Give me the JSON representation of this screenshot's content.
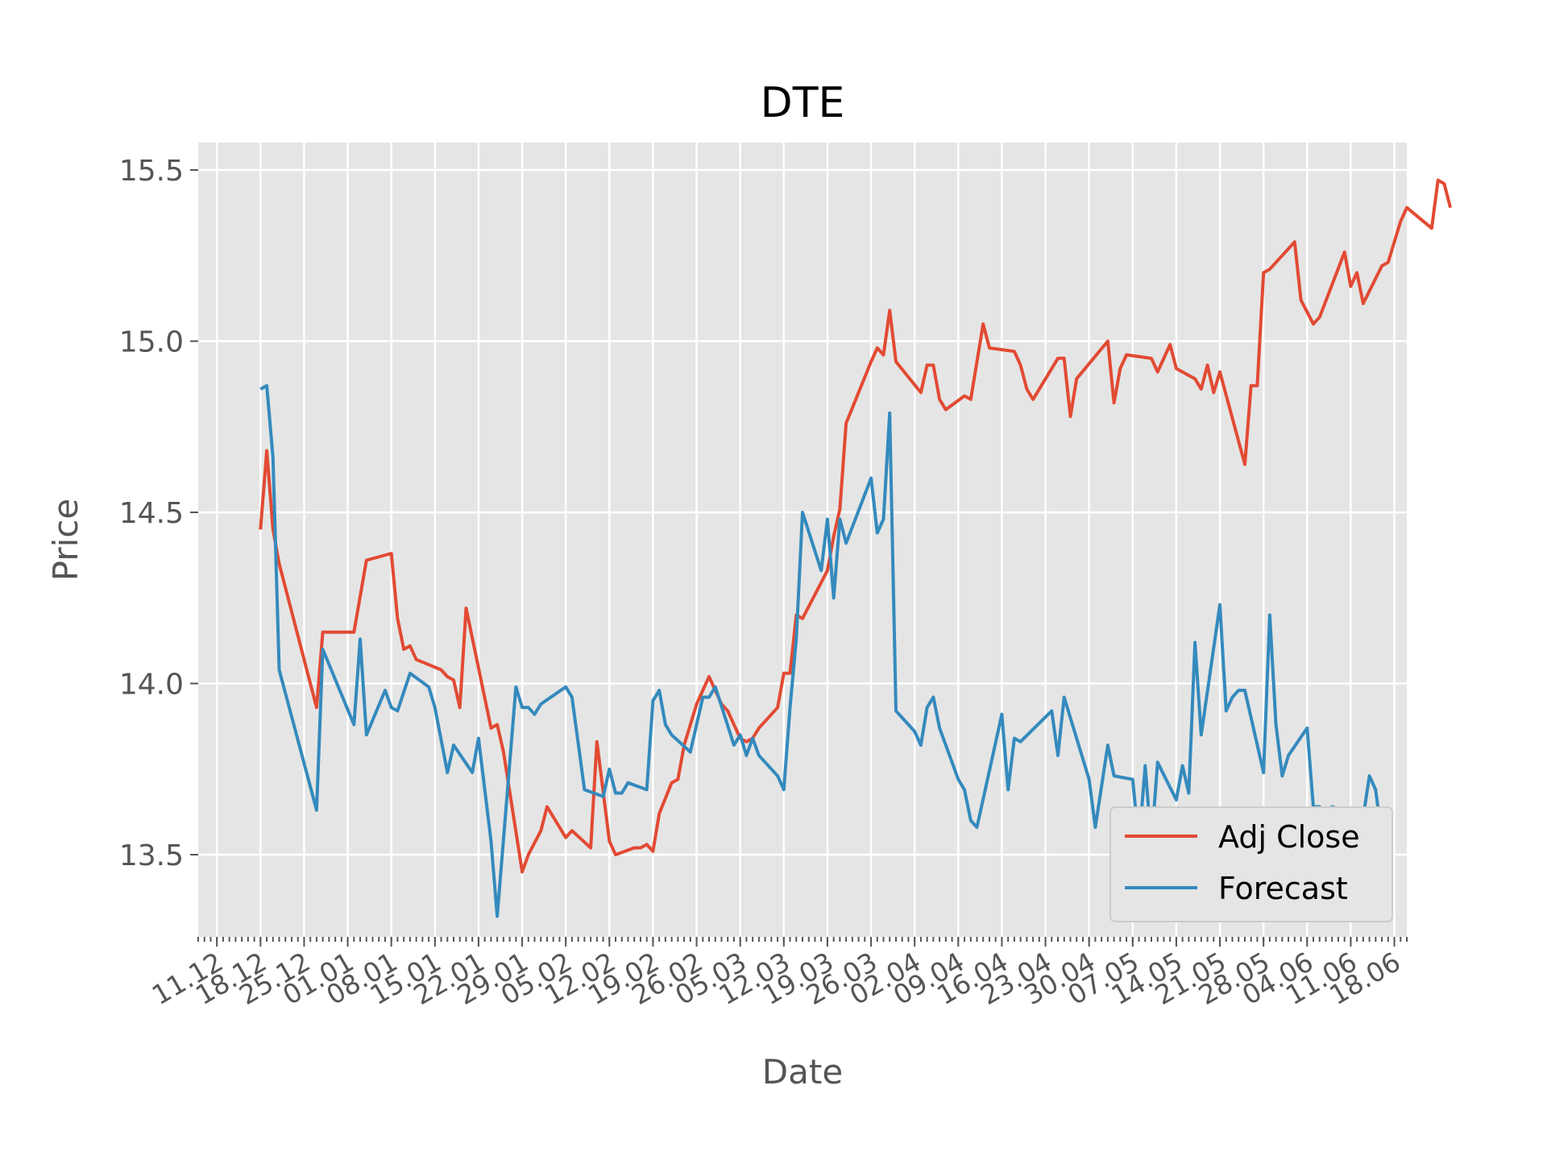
{
  "chart_data": {
    "type": "line",
    "title": "DTE",
    "xlabel": "Date",
    "ylabel": "Price",
    "ylim": [
      13.26,
      15.58
    ],
    "yticks": [
      13.5,
      14.0,
      14.5,
      15.0,
      15.5
    ],
    "ytick_labels": [
      "13.5",
      "14.0",
      "14.5",
      "15.0",
      "15.5"
    ],
    "xlim": [
      "2017-12-08",
      "2018-06-20"
    ],
    "xtick_labels": [
      {
        "date": "2017-12-11",
        "label": "11.12"
      },
      {
        "date": "2017-12-18",
        "label": "18.12"
      },
      {
        "date": "2017-12-25",
        "label": "25.12"
      },
      {
        "date": "2018-01-01",
        "label": "01.01"
      },
      {
        "date": "2018-01-08",
        "label": "08.01"
      },
      {
        "date": "2018-01-15",
        "label": "15.01"
      },
      {
        "date": "2018-01-22",
        "label": "22.01"
      },
      {
        "date": "2018-01-29",
        "label": "29.01"
      },
      {
        "date": "2018-02-05",
        "label": "05.02"
      },
      {
        "date": "2018-02-12",
        "label": "12.02"
      },
      {
        "date": "2018-02-19",
        "label": "19.02"
      },
      {
        "date": "2018-02-26",
        "label": "26.02"
      },
      {
        "date": "2018-03-05",
        "label": "05.03"
      },
      {
        "date": "2018-03-12",
        "label": "12.03"
      },
      {
        "date": "2018-03-19",
        "label": "19.03"
      },
      {
        "date": "2018-03-26",
        "label": "26.03"
      },
      {
        "date": "2018-04-02",
        "label": "02.04"
      },
      {
        "date": "2018-04-09",
        "label": "09.04"
      },
      {
        "date": "2018-04-16",
        "label": "16.04"
      },
      {
        "date": "2018-04-23",
        "label": "23.04"
      },
      {
        "date": "2018-04-30",
        "label": "30.04"
      },
      {
        "date": "2018-05-07",
        "label": "07.05"
      },
      {
        "date": "2018-05-14",
        "label": "14.05"
      },
      {
        "date": "2018-05-21",
        "label": "21.05"
      },
      {
        "date": "2018-05-28",
        "label": "28.05"
      },
      {
        "date": "2018-06-04",
        "label": "04.06"
      },
      {
        "date": "2018-06-11",
        "label": "11.06"
      },
      {
        "date": "2018-06-18",
        "label": "18.06"
      }
    ],
    "grid": true,
    "legend_position": "lower-right",
    "series": [
      {
        "name": "Adj Close",
        "color": "#E24A33",
        "points": [
          [
            "2017-12-18",
            14.45
          ],
          [
            "2017-12-19",
            14.68
          ],
          [
            "2017-12-20",
            14.45
          ],
          [
            "2017-12-21",
            14.35
          ],
          [
            "2017-12-27",
            13.93
          ],
          [
            "2017-12-28",
            14.15
          ],
          [
            "2018-01-02",
            14.15
          ],
          [
            "2018-01-04",
            14.36
          ],
          [
            "2018-01-08",
            14.38
          ],
          [
            "2018-01-09",
            14.19
          ],
          [
            "2018-01-10",
            14.1
          ],
          [
            "2018-01-11",
            14.11
          ],
          [
            "2018-01-12",
            14.07
          ],
          [
            "2018-01-16",
            14.04
          ],
          [
            "2018-01-17",
            14.02
          ],
          [
            "2018-01-18",
            14.01
          ],
          [
            "2018-01-19",
            13.93
          ],
          [
            "2018-01-20",
            14.22
          ],
          [
            "2018-01-24",
            13.87
          ],
          [
            "2018-01-25",
            13.88
          ],
          [
            "2018-01-26",
            13.8
          ],
          [
            "2018-01-29",
            13.45
          ],
          [
            "2018-01-30",
            13.5
          ],
          [
            "2018-02-01",
            13.57
          ],
          [
            "2018-02-02",
            13.64
          ],
          [
            "2018-02-05",
            13.55
          ],
          [
            "2018-02-06",
            13.57
          ],
          [
            "2018-02-09",
            13.52
          ],
          [
            "2018-02-10",
            13.83
          ],
          [
            "2018-02-12",
            13.54
          ],
          [
            "2018-02-13",
            13.5
          ],
          [
            "2018-02-16",
            13.52
          ],
          [
            "2018-02-17",
            13.52
          ],
          [
            "2018-02-18",
            13.53
          ],
          [
            "2018-02-19",
            13.51
          ],
          [
            "2018-02-20",
            13.62
          ],
          [
            "2018-02-22",
            13.71
          ],
          [
            "2018-02-23",
            13.72
          ],
          [
            "2018-02-24",
            13.82
          ],
          [
            "2018-02-26",
            13.94
          ],
          [
            "2018-02-28",
            14.02
          ],
          [
            "2018-03-02",
            13.94
          ],
          [
            "2018-03-03",
            13.92
          ],
          [
            "2018-03-05",
            13.84
          ],
          [
            "2018-03-06",
            13.83
          ],
          [
            "2018-03-07",
            13.84
          ],
          [
            "2018-03-08",
            13.87
          ],
          [
            "2018-03-11",
            13.93
          ],
          [
            "2018-03-12",
            14.03
          ],
          [
            "2018-03-13",
            14.03
          ],
          [
            "2018-03-14",
            14.2
          ],
          [
            "2018-03-15",
            14.19
          ],
          [
            "2018-03-19",
            14.33
          ],
          [
            "2018-03-20",
            14.43
          ],
          [
            "2018-03-21",
            14.51
          ],
          [
            "2018-03-22",
            14.76
          ],
          [
            "2018-03-26",
            14.94
          ],
          [
            "2018-03-27",
            14.98
          ],
          [
            "2018-03-28",
            14.96
          ],
          [
            "2018-03-29",
            15.09
          ],
          [
            "2018-03-30",
            14.94
          ],
          [
            "2018-04-03",
            14.85
          ],
          [
            "2018-04-04",
            14.93
          ],
          [
            "2018-04-05",
            14.93
          ],
          [
            "2018-04-06",
            14.83
          ],
          [
            "2018-04-07",
            14.8
          ],
          [
            "2018-04-10",
            14.84
          ],
          [
            "2018-04-11",
            14.83
          ],
          [
            "2018-04-13",
            15.05
          ],
          [
            "2018-04-14",
            14.98
          ],
          [
            "2018-04-18",
            14.97
          ],
          [
            "2018-04-19",
            14.93
          ],
          [
            "2018-04-20",
            14.86
          ],
          [
            "2018-04-21",
            14.83
          ],
          [
            "2018-04-25",
            14.95
          ],
          [
            "2018-04-26",
            14.95
          ],
          [
            "2018-04-27",
            14.78
          ],
          [
            "2018-04-28",
            14.89
          ],
          [
            "2018-05-03",
            15.0
          ],
          [
            "2018-05-04",
            14.82
          ],
          [
            "2018-05-05",
            14.92
          ],
          [
            "2018-05-06",
            14.96
          ],
          [
            "2018-05-10",
            14.95
          ],
          [
            "2018-05-11",
            14.91
          ],
          [
            "2018-05-13",
            14.99
          ],
          [
            "2018-05-14",
            14.92
          ],
          [
            "2018-05-17",
            14.89
          ],
          [
            "2018-05-18",
            14.86
          ],
          [
            "2018-05-19",
            14.93
          ],
          [
            "2018-05-20",
            14.85
          ],
          [
            "2018-05-21",
            14.91
          ],
          [
            "2018-05-25",
            14.64
          ],
          [
            "2018-05-26",
            14.87
          ],
          [
            "2018-05-27",
            14.87
          ],
          [
            "2018-05-28",
            15.2
          ],
          [
            "2018-05-29",
            15.21
          ],
          [
            "2018-06-02",
            15.29
          ],
          [
            "2018-06-03",
            15.12
          ],
          [
            "2018-06-05",
            15.05
          ],
          [
            "2018-06-06",
            15.07
          ],
          [
            "2018-06-10",
            15.26
          ],
          [
            "2018-06-11",
            15.16
          ],
          [
            "2018-06-12",
            15.2
          ],
          [
            "2018-06-13",
            15.11
          ],
          [
            "2018-06-16",
            15.22
          ],
          [
            "2018-06-17",
            15.23
          ],
          [
            "2018-06-19",
            15.35
          ],
          [
            "2018-06-20",
            15.39
          ],
          [
            "2018-06-24",
            15.33
          ],
          [
            "2018-06-25",
            15.47
          ],
          [
            "2018-06-26",
            15.46
          ],
          [
            "2018-06-27",
            15.39
          ]
        ]
      },
      {
        "name": "Forecast",
        "color": "#348ABD",
        "points": [
          [
            "2017-12-18",
            14.86
          ],
          [
            "2017-12-19",
            14.87
          ],
          [
            "2017-12-20",
            14.66
          ],
          [
            "2017-12-21",
            14.04
          ],
          [
            "2017-12-27",
            13.63
          ],
          [
            "2017-12-28",
            14.1
          ],
          [
            "2018-01-02",
            13.88
          ],
          [
            "2018-01-03",
            14.13
          ],
          [
            "2018-01-04",
            13.85
          ],
          [
            "2018-01-07",
            13.98
          ],
          [
            "2018-01-08",
            13.93
          ],
          [
            "2018-01-09",
            13.92
          ],
          [
            "2018-01-11",
            14.03
          ],
          [
            "2018-01-14",
            13.99
          ],
          [
            "2018-01-15",
            13.93
          ],
          [
            "2018-01-17",
            13.74
          ],
          [
            "2018-01-18",
            13.82
          ],
          [
            "2018-01-21",
            13.74
          ],
          [
            "2018-01-22",
            13.84
          ],
          [
            "2018-01-24",
            13.54
          ],
          [
            "2018-01-25",
            13.32
          ],
          [
            "2018-01-28",
            13.99
          ],
          [
            "2018-01-29",
            13.93
          ],
          [
            "2018-01-30",
            13.93
          ],
          [
            "2018-01-31",
            13.91
          ],
          [
            "2018-02-01",
            13.94
          ],
          [
            "2018-02-05",
            13.99
          ],
          [
            "2018-02-06",
            13.96
          ],
          [
            "2018-02-08",
            13.69
          ],
          [
            "2018-02-11",
            13.67
          ],
          [
            "2018-02-12",
            13.75
          ],
          [
            "2018-02-13",
            13.68
          ],
          [
            "2018-02-14",
            13.68
          ],
          [
            "2018-02-15",
            13.71
          ],
          [
            "2018-02-18",
            13.69
          ],
          [
            "2018-02-19",
            13.95
          ],
          [
            "2018-02-20",
            13.98
          ],
          [
            "2018-02-21",
            13.88
          ],
          [
            "2018-02-22",
            13.85
          ],
          [
            "2018-02-25",
            13.8
          ],
          [
            "2018-02-27",
            13.96
          ],
          [
            "2018-02-28",
            13.96
          ],
          [
            "2018-03-01",
            13.99
          ],
          [
            "2018-03-04",
            13.82
          ],
          [
            "2018-03-05",
            13.85
          ],
          [
            "2018-03-06",
            13.79
          ],
          [
            "2018-03-07",
            13.84
          ],
          [
            "2018-03-08",
            13.79
          ],
          [
            "2018-03-11",
            13.73
          ],
          [
            "2018-03-12",
            13.69
          ],
          [
            "2018-03-13",
            13.93
          ],
          [
            "2018-03-14",
            14.13
          ],
          [
            "2018-03-15",
            14.5
          ],
          [
            "2018-03-18",
            14.33
          ],
          [
            "2018-03-19",
            14.48
          ],
          [
            "2018-03-20",
            14.25
          ],
          [
            "2018-03-21",
            14.48
          ],
          [
            "2018-03-22",
            14.41
          ],
          [
            "2018-03-26",
            14.6
          ],
          [
            "2018-03-27",
            14.44
          ],
          [
            "2018-03-28",
            14.48
          ],
          [
            "2018-03-29",
            14.79
          ],
          [
            "2018-03-30",
            13.92
          ],
          [
            "2018-04-02",
            13.86
          ],
          [
            "2018-04-03",
            13.82
          ],
          [
            "2018-04-04",
            13.93
          ],
          [
            "2018-04-05",
            13.96
          ],
          [
            "2018-04-06",
            13.87
          ],
          [
            "2018-04-09",
            13.72
          ],
          [
            "2018-04-10",
            13.69
          ],
          [
            "2018-04-11",
            13.6
          ],
          [
            "2018-04-12",
            13.58
          ],
          [
            "2018-04-16",
            13.91
          ],
          [
            "2018-04-17",
            13.69
          ],
          [
            "2018-04-18",
            13.84
          ],
          [
            "2018-04-19",
            13.83
          ],
          [
            "2018-04-24",
            13.92
          ],
          [
            "2018-04-25",
            13.79
          ],
          [
            "2018-04-26",
            13.96
          ],
          [
            "2018-04-30",
            13.72
          ],
          [
            "2018-05-01",
            13.58
          ],
          [
            "2018-05-03",
            13.82
          ],
          [
            "2018-05-04",
            13.73
          ],
          [
            "2018-05-07",
            13.72
          ],
          [
            "2018-05-08",
            13.53
          ],
          [
            "2018-05-09",
            13.76
          ],
          [
            "2018-05-10",
            13.53
          ],
          [
            "2018-05-11",
            13.77
          ],
          [
            "2018-05-14",
            13.66
          ],
          [
            "2018-05-15",
            13.76
          ],
          [
            "2018-05-16",
            13.68
          ],
          [
            "2018-05-17",
            14.12
          ],
          [
            "2018-05-18",
            13.85
          ],
          [
            "2018-05-21",
            14.23
          ],
          [
            "2018-05-22",
            13.92
          ],
          [
            "2018-05-23",
            13.96
          ],
          [
            "2018-05-24",
            13.98
          ],
          [
            "2018-05-25",
            13.98
          ],
          [
            "2018-05-28",
            13.74
          ],
          [
            "2018-05-29",
            14.2
          ],
          [
            "2018-05-30",
            13.88
          ],
          [
            "2018-05-31",
            13.73
          ],
          [
            "2018-06-01",
            13.79
          ],
          [
            "2018-06-04",
            13.87
          ],
          [
            "2018-06-05",
            13.64
          ],
          [
            "2018-06-06",
            13.64
          ],
          [
            "2018-06-07",
            13.6
          ],
          [
            "2018-06-08",
            13.64
          ],
          [
            "2018-06-13",
            13.61
          ],
          [
            "2018-06-14",
            13.73
          ],
          [
            "2018-06-15",
            13.69
          ],
          [
            "2018-06-16",
            13.55
          ]
        ]
      }
    ]
  }
}
